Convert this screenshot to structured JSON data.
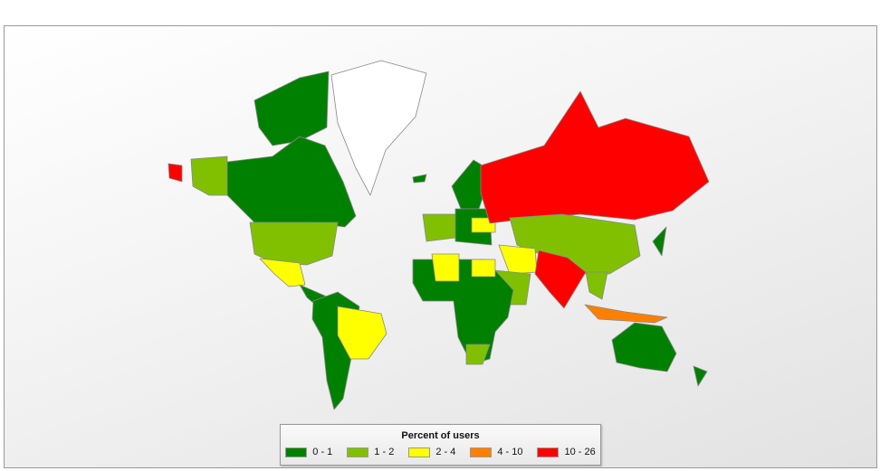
{
  "legend": {
    "title": "Percent of users",
    "items": [
      {
        "label": "0 - 1",
        "color": "#008000"
      },
      {
        "label": "1 - 2",
        "color": "#80c000"
      },
      {
        "label": "2 - 4",
        "color": "#ffff00"
      },
      {
        "label": "4 - 10",
        "color": "#ff8000"
      },
      {
        "label": "10 - 26",
        "color": "#ff0000"
      }
    ]
  },
  "no_data_color": "#ffffff"
}
